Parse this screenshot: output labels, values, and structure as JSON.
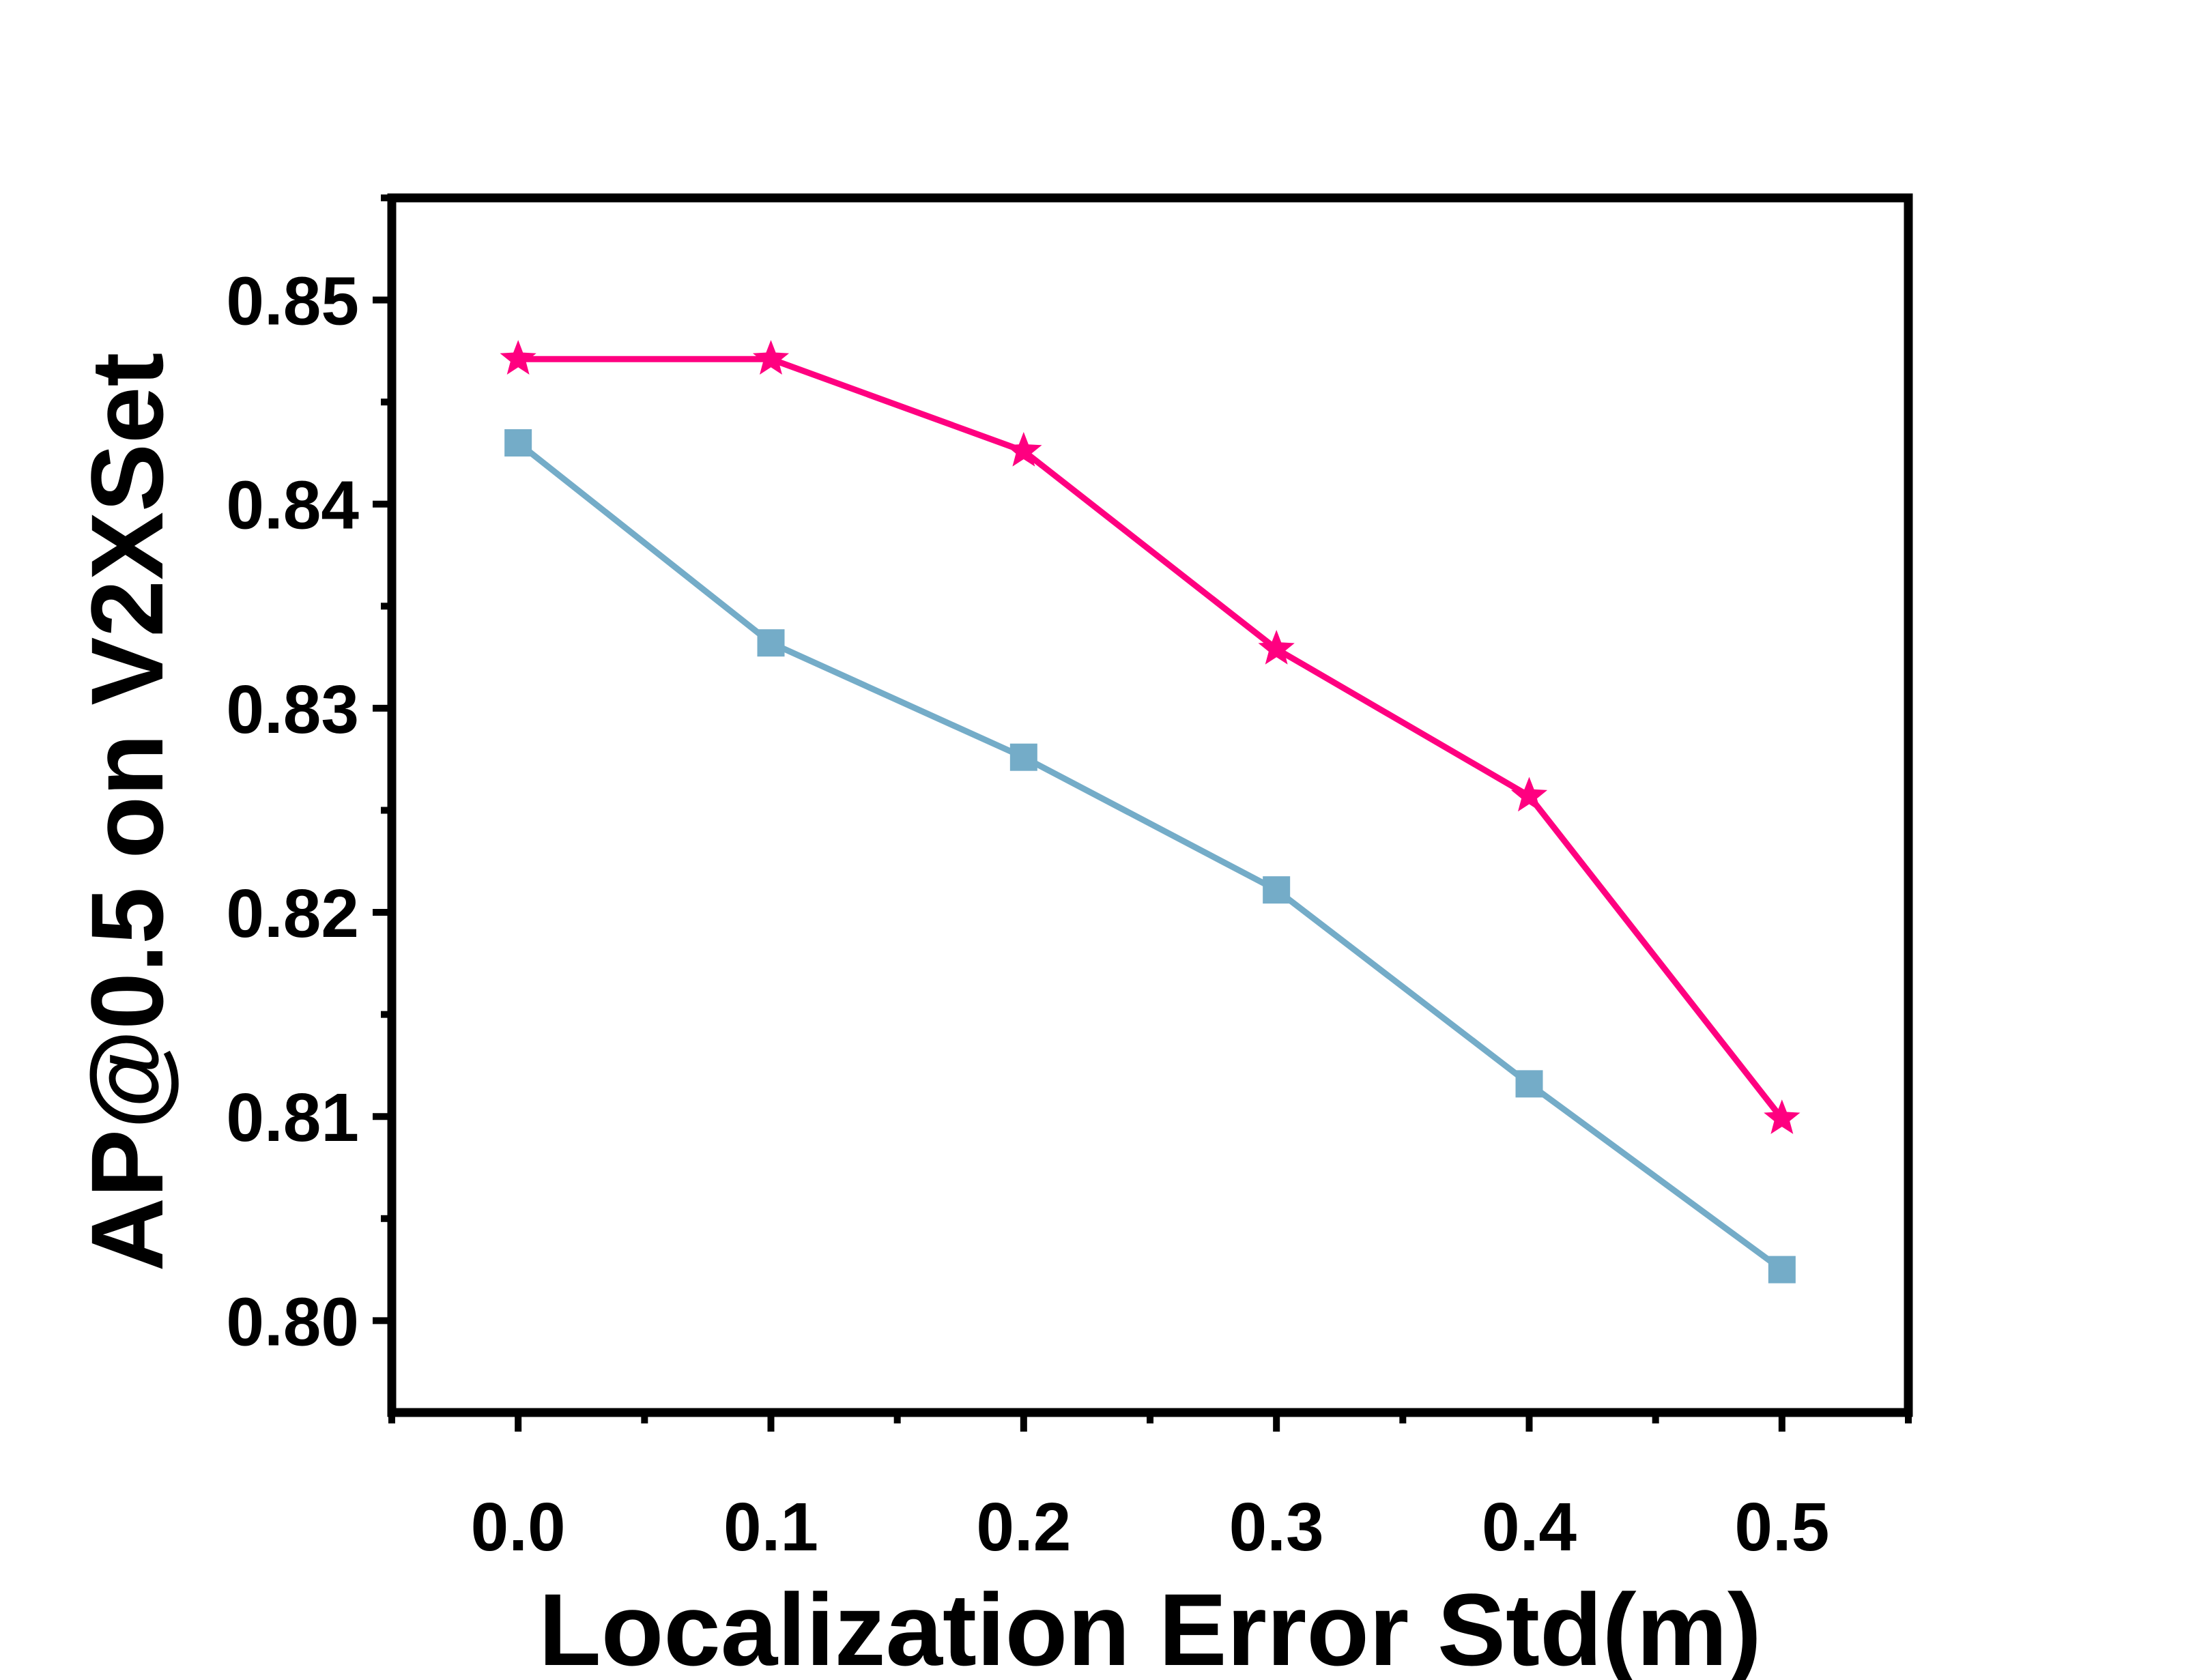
{
  "chart_data": {
    "type": "line",
    "title": "",
    "xlabel": "Localization Error Std(m)",
    "ylabel": "AP@0.5 on V2XSet",
    "x": [
      0.0,
      0.1,
      0.2,
      0.3,
      0.4,
      0.5
    ],
    "x_tick_labels": [
      "0.0",
      "0.1",
      "0.2",
      "0.3",
      "0.4",
      "0.5"
    ],
    "xlim": [
      -0.05,
      0.55
    ],
    "y_ticks": [
      0.8,
      0.81,
      0.82,
      0.83,
      0.84,
      0.85
    ],
    "y_tick_labels": [
      "0.80",
      "0.81",
      "0.82",
      "0.83",
      "0.84",
      "0.85"
    ],
    "ylim": [
      0.7955,
      0.855
    ],
    "grid": false,
    "legend": "none",
    "series": [
      {
        "values": [
          0.8471,
          0.8471,
          0.8426,
          0.8329,
          0.8257,
          0.8099
        ],
        "color": "#ff0080",
        "marker": "star"
      },
      {
        "values": [
          0.843,
          0.8332,
          0.8276,
          0.8211,
          0.8116,
          0.8025
        ],
        "color": "#74acc8",
        "marker": "square"
      }
    ]
  }
}
